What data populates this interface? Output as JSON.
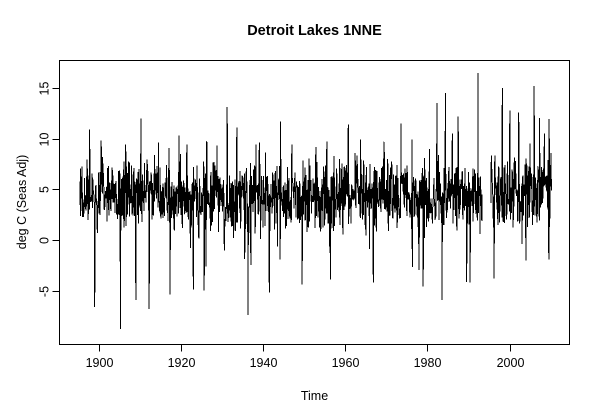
{
  "chart_data": {
    "type": "line",
    "title": "Detroit Lakes 1NNE",
    "xlabel": "Time",
    "ylabel": "deg C (Seas Adj)",
    "x_ticks": [
      1900,
      1920,
      1940,
      1960,
      1980,
      2000
    ],
    "y_ticks": [
      -5,
      0,
      5,
      10,
      15
    ],
    "xlim": [
      1890.4,
      2014.6
    ],
    "ylim": [
      -10.31,
      17.71
    ],
    "x_data_range": [
      1895.4,
      2010.25
    ],
    "frequency_points_per_year": 12,
    "grid": false,
    "legend": "none",
    "background_color": "#ffffff",
    "line_color": "#000000",
    "axis_color": "#000000",
    "gaps": [
      [
        1993.4,
        1995.4
      ]
    ],
    "generator": {
      "seed": 1234567,
      "start": 1895.4,
      "end": 2010.25,
      "per_year": 12,
      "mean": 4.2,
      "cycle_amp": 0.3,
      "cycle_period": 55,
      "cycle_phase": 1895,
      "trend_start": 1985,
      "trend_slope": 0.03,
      "noise_k": 3.3,
      "p_up": 0.03,
      "up_base": 2.2,
      "up_span": 3.2,
      "p_down": 0.022,
      "down_base": 2.2,
      "down_span": 3.6,
      "clip": [
        -7.8,
        13.8
      ]
    },
    "anchors": [
      [
        1897.7,
        10.9
      ],
      [
        1899.0,
        -6.6
      ],
      [
        1900.6,
        9.8
      ],
      [
        1905.2,
        -8.8
      ],
      [
        1906.5,
        9.4
      ],
      [
        1909.0,
        -5.9
      ],
      [
        1910.2,
        12.0
      ],
      [
        1912.2,
        -6.8
      ],
      [
        1914.5,
        9.6
      ],
      [
        1917.3,
        -5.4
      ],
      [
        1919.5,
        10.3
      ],
      [
        1921.4,
        9.4
      ],
      [
        1923.0,
        -4.9
      ],
      [
        1926.3,
        9.6
      ],
      [
        1928.7,
        9.3
      ],
      [
        1931.2,
        13.1
      ],
      [
        1933.6,
        11.1
      ],
      [
        1936.3,
        -7.4
      ],
      [
        1938.2,
        9.4
      ],
      [
        1941.5,
        -5.2
      ],
      [
        1944.2,
        11.7
      ],
      [
        1947.0,
        9.4
      ],
      [
        1949.5,
        -4.4
      ],
      [
        1952.8,
        9.2
      ],
      [
        1955.5,
        9.7
      ],
      [
        1956.4,
        -3.9
      ],
      [
        1960.7,
        11.4
      ],
      [
        1963.7,
        9.9
      ],
      [
        1966.8,
        -4.2
      ],
      [
        1969.5,
        9.6
      ],
      [
        1973.6,
        11.5
      ],
      [
        1976.2,
        9.9
      ],
      [
        1979.0,
        -4.6
      ],
      [
        1982.3,
        13.5
      ],
      [
        1983.6,
        -5.9
      ],
      [
        1984.4,
        14.5
      ],
      [
        1987.5,
        12.2
      ],
      [
        1990.4,
        -4.2
      ],
      [
        1992.3,
        16.5
      ],
      [
        1996.2,
        -3.8
      ],
      [
        1998.2,
        15.0
      ],
      [
        2000.1,
        12.8
      ],
      [
        2002.2,
        12.6
      ],
      [
        2004.0,
        -2.0
      ],
      [
        2006.0,
        15.2
      ],
      [
        2008.5,
        10.5
      ],
      [
        2009.6,
        -1.9
      ]
    ]
  }
}
